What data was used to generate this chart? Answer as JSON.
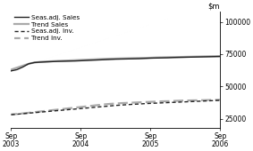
{
  "title": "",
  "ylim": [
    18000,
    108000
  ],
  "yticks": [
    25000,
    50000,
    75000,
    100000
  ],
  "x_positions": [
    0,
    12,
    24,
    36
  ],
  "xlabel_ticks": [
    "Sep\n2003",
    "Sep\n2004",
    "Sep\n2005",
    "Sep\n2006"
  ],
  "seas_adj_sales": [
    62000,
    63000,
    65000,
    67500,
    68500,
    68800,
    69000,
    69200,
    69400,
    69500,
    69600,
    69700,
    69900,
    70100,
    70300,
    70500,
    70700,
    70900,
    71100,
    71200,
    71300,
    71400,
    71500,
    71700,
    71900,
    72000,
    72100,
    72200,
    72400,
    72500,
    72600,
    72700,
    72800,
    72900,
    73000,
    73100,
    73200
  ],
  "trend_sales": [
    63000,
    64500,
    66000,
    67500,
    68500,
    69000,
    69300,
    69500,
    69700,
    69900,
    70100,
    70300,
    70500,
    70700,
    70900,
    71100,
    71300,
    71500,
    71600,
    71700,
    71800,
    71900,
    72000,
    72100,
    72200,
    72400,
    72500,
    72600,
    72700,
    72800,
    72900,
    73000,
    73100,
    73200,
    73300,
    73400,
    73500
  ],
  "seas_adj_inv": [
    28000,
    28400,
    28800,
    29200,
    29600,
    30000,
    30400,
    30800,
    31200,
    31600,
    32000,
    32400,
    32800,
    33200,
    33600,
    34000,
    34400,
    34800,
    35200,
    35500,
    35800,
    36100,
    36300,
    36600,
    36800,
    37000,
    37200,
    37400,
    37600,
    37800,
    38000,
    38200,
    38400,
    38600,
    38800,
    39000,
    39200
  ],
  "trend_inv": [
    28200,
    28600,
    29000,
    29500,
    30000,
    30500,
    31000,
    31500,
    32000,
    32500,
    33000,
    33500,
    34000,
    34500,
    35000,
    35500,
    36000,
    36400,
    36700,
    37000,
    37200,
    37400,
    37600,
    37800,
    38000,
    38200,
    38400,
    38500,
    38700,
    38900,
    39000,
    39100,
    39200,
    39300,
    39400,
    39500,
    39600
  ],
  "legend_labels": [
    "Seas.adj. Sales",
    "Trend Sales",
    "Seas.adj. Inv.",
    "Trend Inv."
  ],
  "color_dark": "#222222",
  "color_light": "#aaaaaa",
  "background": "#ffffff"
}
